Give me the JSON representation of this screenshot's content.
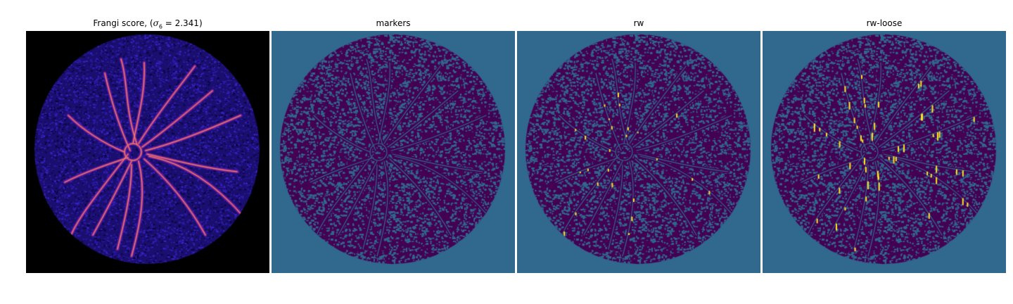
{
  "figure": {
    "panels": [
      {
        "key": "frangi",
        "title_prefix": "Frangi score, (",
        "title_symbol": "σ",
        "title_subscript": "6",
        "title_suffix": " = 2.341)",
        "colormap": "magma",
        "background": "#000000"
      },
      {
        "key": "markers",
        "title": "markers",
        "colormap": "viridis",
        "background": "#31688e",
        "foreground": "#440154"
      },
      {
        "key": "rw",
        "title": "rw",
        "colormap": "viridis",
        "background": "#31688e",
        "foreground": "#440154",
        "highlight": "#fde725"
      },
      {
        "key": "rw_loose",
        "title": "rw-loose",
        "colormap": "viridis",
        "background": "#31688e",
        "foreground": "#440154",
        "highlight": "#fde725"
      }
    ]
  }
}
